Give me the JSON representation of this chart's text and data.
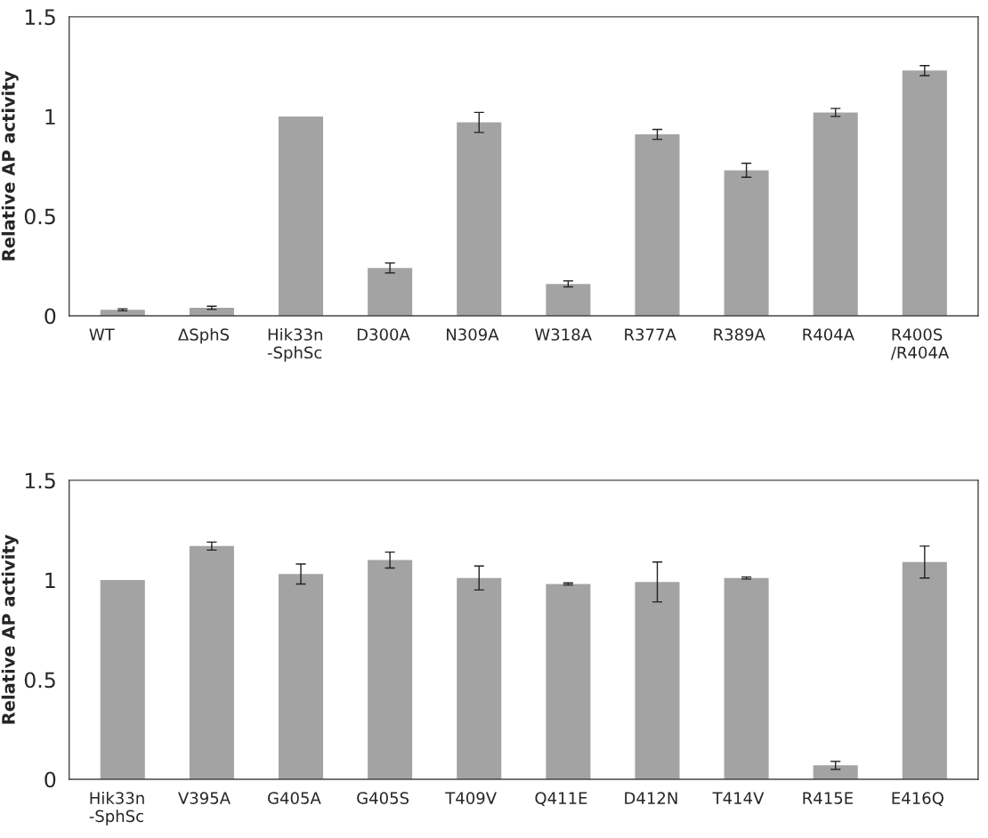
{
  "chart_data": [
    {
      "type": "bar",
      "ylabel": "Relative AP activity",
      "categories": [
        "WT",
        "ΔSphS",
        "Hik33n\n-SphSc",
        "D300A",
        "N309A",
        "W318A",
        "R377A",
        "R389A",
        "R404A",
        "R400S\n/R404A"
      ],
      "values": [
        0.03,
        0.04,
        1.0,
        0.24,
        0.97,
        0.16,
        0.91,
        0.73,
        1.02,
        1.23
      ],
      "errors": [
        0.005,
        0.008,
        null,
        0.025,
        0.05,
        0.015,
        0.025,
        0.035,
        0.02,
        0.025
      ],
      "color": "#a3a3a3",
      "ylim": [
        0,
        1.5
      ],
      "yticks": [
        0,
        0.5,
        1,
        1.5
      ],
      "grid": false
    },
    {
      "type": "bar",
      "ylabel": "Relative AP activity",
      "categories": [
        "Hik33n\n-SphSc",
        "V395A",
        "G405A",
        "G405S",
        "T409V",
        "Q411E",
        "D412N",
        "T414V",
        "R415E",
        "E416Q"
      ],
      "values": [
        1.0,
        1.17,
        1.03,
        1.1,
        1.01,
        0.98,
        0.99,
        1.01,
        0.07,
        1.09
      ],
      "errors": [
        null,
        0.02,
        0.05,
        0.04,
        0.06,
        0.005,
        0.1,
        0.005,
        0.02,
        0.08
      ],
      "color": "#a3a3a3",
      "ylim": [
        0,
        1.5
      ],
      "yticks": [
        0,
        0.5,
        1,
        1.5
      ],
      "grid": false
    }
  ]
}
